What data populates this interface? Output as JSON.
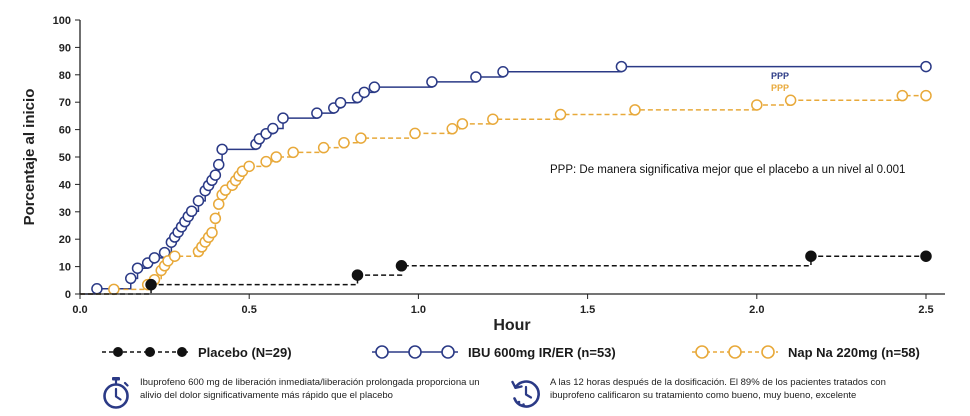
{
  "chart_data": {
    "type": "line",
    "title": "",
    "xlabel": "Hour",
    "ylabel": "Porcentaje al inicio",
    "xlim": [
      0,
      2.5
    ],
    "ylim": [
      0,
      100
    ],
    "x_ticks": [
      "0.0",
      "0.5",
      "1.0",
      "1.5",
      "2.0",
      "2.5"
    ],
    "y_ticks": [
      "0",
      "10",
      "20",
      "30",
      "40",
      "50",
      "60",
      "70",
      "80",
      "90",
      "100"
    ],
    "step": true,
    "series": [
      {
        "name": "IBU 600mg IR/ER (n=53)",
        "color": "#2b3a86",
        "linestyle": "solid",
        "marker": "open-circle",
        "x": [
          0.05,
          0.15,
          0.17,
          0.2,
          0.22,
          0.25,
          0.27,
          0.28,
          0.29,
          0.3,
          0.31,
          0.32,
          0.33,
          0.35,
          0.37,
          0.38,
          0.39,
          0.4,
          0.41,
          0.42,
          0.52,
          0.53,
          0.55,
          0.57,
          0.6,
          0.7,
          0.75,
          0.77,
          0.82,
          0.84,
          0.87,
          1.04,
          1.17,
          1.25,
          1.6,
          2.5
        ],
        "y": [
          1.9,
          5.7,
          9.4,
          11.3,
          13.2,
          15.1,
          18.9,
          20.8,
          22.6,
          24.5,
          26.4,
          28.3,
          30.2,
          34.0,
          37.7,
          39.6,
          41.5,
          43.4,
          47.2,
          52.8,
          54.7,
          56.6,
          58.5,
          60.4,
          64.2,
          66.0,
          67.9,
          69.8,
          71.7,
          73.6,
          75.5,
          77.4,
          79.2,
          81.1,
          83.0,
          83.0
        ],
        "annotation": "PPP"
      },
      {
        "name": "Nap Na 220mg (n=58)",
        "color": "#e8a93a",
        "linestyle": "dashed",
        "marker": "open-circle",
        "x": [
          0.1,
          0.2,
          0.22,
          0.24,
          0.25,
          0.26,
          0.28,
          0.35,
          0.36,
          0.37,
          0.38,
          0.39,
          0.4,
          0.41,
          0.42,
          0.43,
          0.45,
          0.46,
          0.47,
          0.48,
          0.5,
          0.55,
          0.58,
          0.63,
          0.72,
          0.78,
          0.83,
          0.99,
          1.1,
          1.13,
          1.22,
          1.42,
          1.64,
          2.0,
          2.1,
          2.43,
          2.5
        ],
        "y": [
          1.7,
          3.4,
          5.2,
          8.6,
          10.3,
          12.1,
          13.8,
          15.5,
          17.2,
          19.0,
          20.7,
          22.4,
          27.6,
          32.8,
          36.2,
          37.9,
          39.7,
          41.4,
          43.1,
          44.8,
          46.6,
          48.3,
          50.0,
          51.7,
          53.4,
          55.2,
          56.9,
          58.6,
          60.3,
          62.1,
          63.8,
          65.5,
          67.2,
          69.0,
          70.7,
          72.4,
          72.4
        ],
        "annotation": "PPP"
      },
      {
        "name": "Placebo (N=29)",
        "color": "#111111",
        "linestyle": "dashed",
        "marker": "filled-circle",
        "x": [
          0.21,
          0.82,
          0.95,
          2.16,
          2.5
        ],
        "y": [
          3.4,
          6.9,
          10.3,
          13.8,
          13.8
        ]
      }
    ],
    "annotations": [
      "PPP: De manera significativa mejor que el placebo a un nivel al 0.001"
    ]
  },
  "legend": {
    "placebo": "Placebo (N=29)",
    "ibu": "IBU 600mg IR/ER (n=53)",
    "nap": "Nap Na 220mg (n=58)"
  },
  "notes": {
    "left": "Ibuprofeno 600 mg de liberación inmediata/liberación prolongada proporciona un alivio del dolor significativamente más rápido que el placebo",
    "right": "A las 12 horas después de la dosificación. El 89% de los pacientes tratados con ibuprofeno calificaron su tratamiento como bueno, muy bueno, excelente",
    "left_icon": "stopwatch-icon",
    "right_icon": "clock-history-icon"
  }
}
